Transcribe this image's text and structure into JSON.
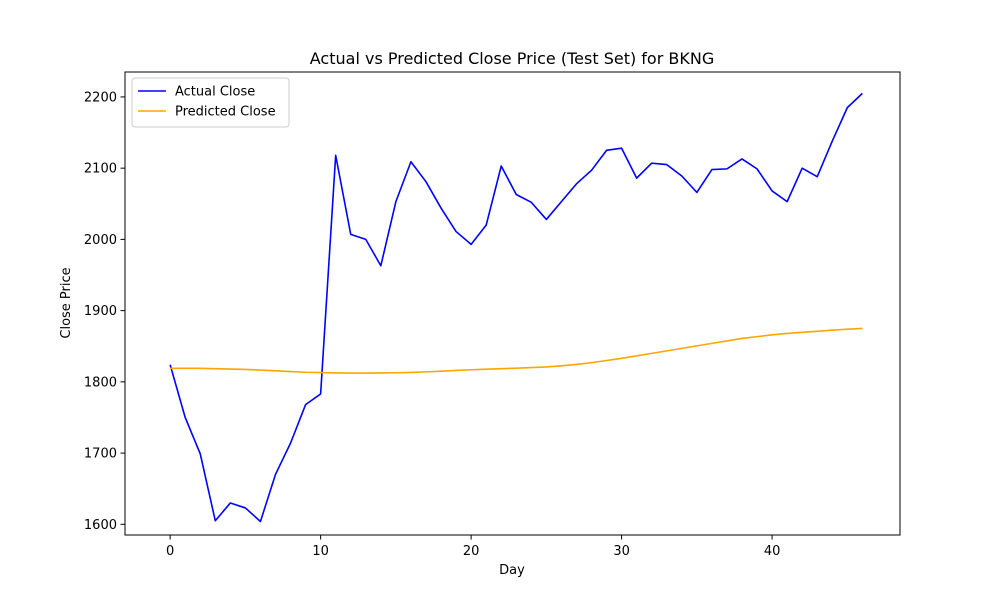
{
  "chart_data": {
    "type": "line",
    "title": "Actual vs Predicted Close Price (Test Set) for BKNG",
    "xlabel": "Day",
    "ylabel": "Close Price",
    "xlim": [
      -3,
      48.5
    ],
    "ylim": [
      1585,
      2235
    ],
    "xticks": [
      0,
      10,
      20,
      30,
      40
    ],
    "yticks": [
      1600,
      1700,
      1800,
      1900,
      2000,
      2100,
      2200
    ],
    "grid": false,
    "legend_position": "top-left",
    "x": [
      0,
      1,
      2,
      3,
      4,
      5,
      6,
      7,
      8,
      9,
      10,
      11,
      12,
      13,
      14,
      15,
      16,
      17,
      18,
      19,
      20,
      21,
      22,
      23,
      24,
      25,
      26,
      27,
      28,
      29,
      30,
      31,
      32,
      33,
      34,
      35,
      36,
      37,
      38,
      39,
      40,
      41,
      42,
      43,
      44,
      45,
      46
    ],
    "series": [
      {
        "name": "Actual Close",
        "color": "#0000ff",
        "values": [
          1824,
          1750,
          1699,
          1605,
          1630,
          1623,
          1604,
          1670,
          1714,
          1768,
          1783,
          2118,
          2007,
          2000,
          1963,
          2053,
          2109,
          2081,
          2044,
          2011,
          1993,
          2020,
          2103,
          2063,
          2052,
          2028,
          2053,
          2078,
          2097,
          2125,
          2128,
          2086,
          2107,
          2105,
          2089,
          2066,
          2098,
          2099,
          2113,
          2099,
          2068,
          2053,
          2100,
          2088,
          2138,
          2185,
          2205
        ]
      },
      {
        "name": "Predicted Close",
        "color": "#ffa500",
        "values": [
          1819,
          1819,
          1819,
          1818.5,
          1818,
          1817.5,
          1816.5,
          1815.5,
          1814.5,
          1813.5,
          1813,
          1812.5,
          1812.3,
          1812.3,
          1812.5,
          1812.8,
          1813.2,
          1814,
          1815,
          1816,
          1817,
          1817.8,
          1818.5,
          1819.2,
          1820,
          1821,
          1822.5,
          1824.5,
          1827,
          1830,
          1833,
          1836.5,
          1840,
          1843.5,
          1847,
          1850.5,
          1854,
          1857.5,
          1861,
          1863.5,
          1866,
          1868,
          1869.5,
          1871,
          1872.5,
          1874,
          1875
        ]
      }
    ]
  }
}
